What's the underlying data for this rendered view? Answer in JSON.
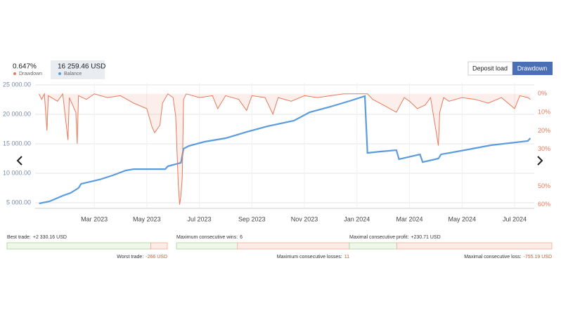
{
  "chart_data": {
    "type": "line",
    "summary": [
      {
        "value": "0.647%",
        "name": "Drawdown"
      },
      {
        "value": "16 259.46 USD",
        "name": "Balance"
      }
    ],
    "buttons": [
      "Deposit load",
      "Drawdown"
    ],
    "active_button": 1,
    "xticks": [
      {
        "value": 2,
        "label": "Mar 2023"
      },
      {
        "value": 4,
        "label": "May 2023"
      },
      {
        "value": 6,
        "label": "Jul 2023"
      },
      {
        "value": 8,
        "label": "Sep 2023"
      },
      {
        "value": 10,
        "label": "Nov 2023"
      },
      {
        "value": 12,
        "label": "Jan 2024"
      },
      {
        "value": 14,
        "label": "Mar 2024"
      },
      {
        "value": 16,
        "label": "May 2024"
      },
      {
        "value": 18,
        "label": "Jul 2024"
      }
    ],
    "xlim": [
      -0.25,
      18.75
    ],
    "ylim": [
      4050,
      25360
    ],
    "yticks": [
      {
        "value": 25000,
        "label": "25 000.00"
      },
      {
        "value": 20000,
        "label": "20 000.00"
      },
      {
        "value": 15000,
        "label": "15 000.00"
      },
      {
        "value": 10000,
        "label": "10 000.00"
      },
      {
        "value": 5000,
        "label": "5 000.00"
      }
    ],
    "y2lim": [
      -6,
      62
    ],
    "y2_inverted": true,
    "y2ticks": [
      {
        "value": 0,
        "label": "0%"
      },
      {
        "value": 10,
        "label": "10%"
      },
      {
        "value": 20,
        "label": "20%"
      },
      {
        "value": 30,
        "label": "30%"
      },
      {
        "value": 50,
        "label": "50%"
      },
      {
        "value": 60,
        "label": "60%"
      }
    ],
    "grid": true,
    "series": [
      {
        "name": "Balance",
        "color": "#5b9be0",
        "x": [
          -0.1,
          0.3,
          0.8,
          1.1,
          1.4,
          1.5,
          2.2,
          2.7,
          3.2,
          3.5,
          4.7,
          4.8,
          5.3,
          5.4,
          5.6,
          6.2,
          7.0,
          7.8,
          8.6,
          9.6,
          10.2,
          11.0,
          11.8,
          12.3,
          12.4,
          12.9,
          13.5,
          13.6,
          14.4,
          14.5,
          15.1,
          15.2,
          16.1,
          17.1,
          18.5,
          18.6
        ],
        "values": [
          4880,
          5240,
          6190,
          6670,
          7500,
          8210,
          8930,
          9640,
          10480,
          10710,
          10710,
          11190,
          11790,
          14170,
          14640,
          15360,
          15950,
          17020,
          17980,
          18930,
          20360,
          21310,
          22380,
          23100,
          13450,
          13690,
          13930,
          12380,
          13210,
          11900,
          12500,
          13210,
          13930,
          14760,
          15480,
          15950
        ]
      },
      {
        "name": "Drawdown",
        "color": "#e8795a",
        "axis": "y2",
        "x": [
          -0.1,
          0.0,
          0.1,
          0.2,
          0.25,
          0.6,
          0.8,
          1.0,
          1.05,
          1.3,
          1.35,
          1.4,
          1.7,
          2.0,
          2.5,
          3.0,
          3.5,
          4.0,
          4.2,
          4.3,
          4.5,
          4.6,
          4.8,
          5.0,
          5.1,
          5.2,
          5.25,
          5.3,
          5.35,
          5.4,
          5.5,
          6.0,
          6.5,
          6.7,
          7.0,
          7.5,
          7.8,
          8.0,
          8.5,
          8.8,
          9.0,
          9.5,
          10.0,
          10.5,
          11.0,
          11.5,
          12.0,
          12.4,
          12.6,
          13.0,
          13.5,
          13.8,
          14.0,
          14.3,
          14.6,
          14.8,
          15.1,
          15.15,
          15.3,
          15.5,
          16.0,
          16.5,
          17.0,
          17.5,
          18.0,
          18.2,
          18.5,
          18.6
        ],
        "values": [
          0,
          3,
          0,
          20,
          1,
          4,
          0,
          25,
          2,
          10,
          27,
          1,
          3,
          0,
          2,
          1,
          5,
          8,
          18,
          21,
          17,
          5,
          0,
          2,
          12,
          50,
          60,
          55,
          45,
          3,
          0,
          2,
          1,
          8,
          1,
          3,
          9,
          1,
          2,
          11,
          2,
          4,
          1,
          2,
          1,
          0,
          0,
          0,
          3,
          6,
          10,
          2,
          4,
          8,
          6,
          2,
          28,
          10,
          2,
          4,
          2,
          3,
          5,
          2,
          8,
          1,
          2,
          3
        ]
      }
    ],
    "stats": [
      {
        "win_label": "Best trade:",
        "win": {
          "value": 2330.16,
          "label": "+2 330.16 USD"
        },
        "loss_label": "Worst trade:",
        "loss": {
          "value": -266,
          "label": "-266 USD"
        }
      },
      {
        "win_label": "Maximum consecutive wins:",
        "win": {
          "value": 6,
          "label": "6"
        },
        "loss_label": "Maximum consecutive losses:",
        "loss": {
          "value": 11,
          "label": "11"
        }
      },
      {
        "win_label": "Maximal consecutive profit:",
        "win": {
          "value": 230.71,
          "label": "+230.71 USD"
        },
        "loss_label": "Maximal consecutive loss:",
        "loss": {
          "value": -755.19,
          "label": "-755.19 USD"
        }
      }
    ]
  }
}
